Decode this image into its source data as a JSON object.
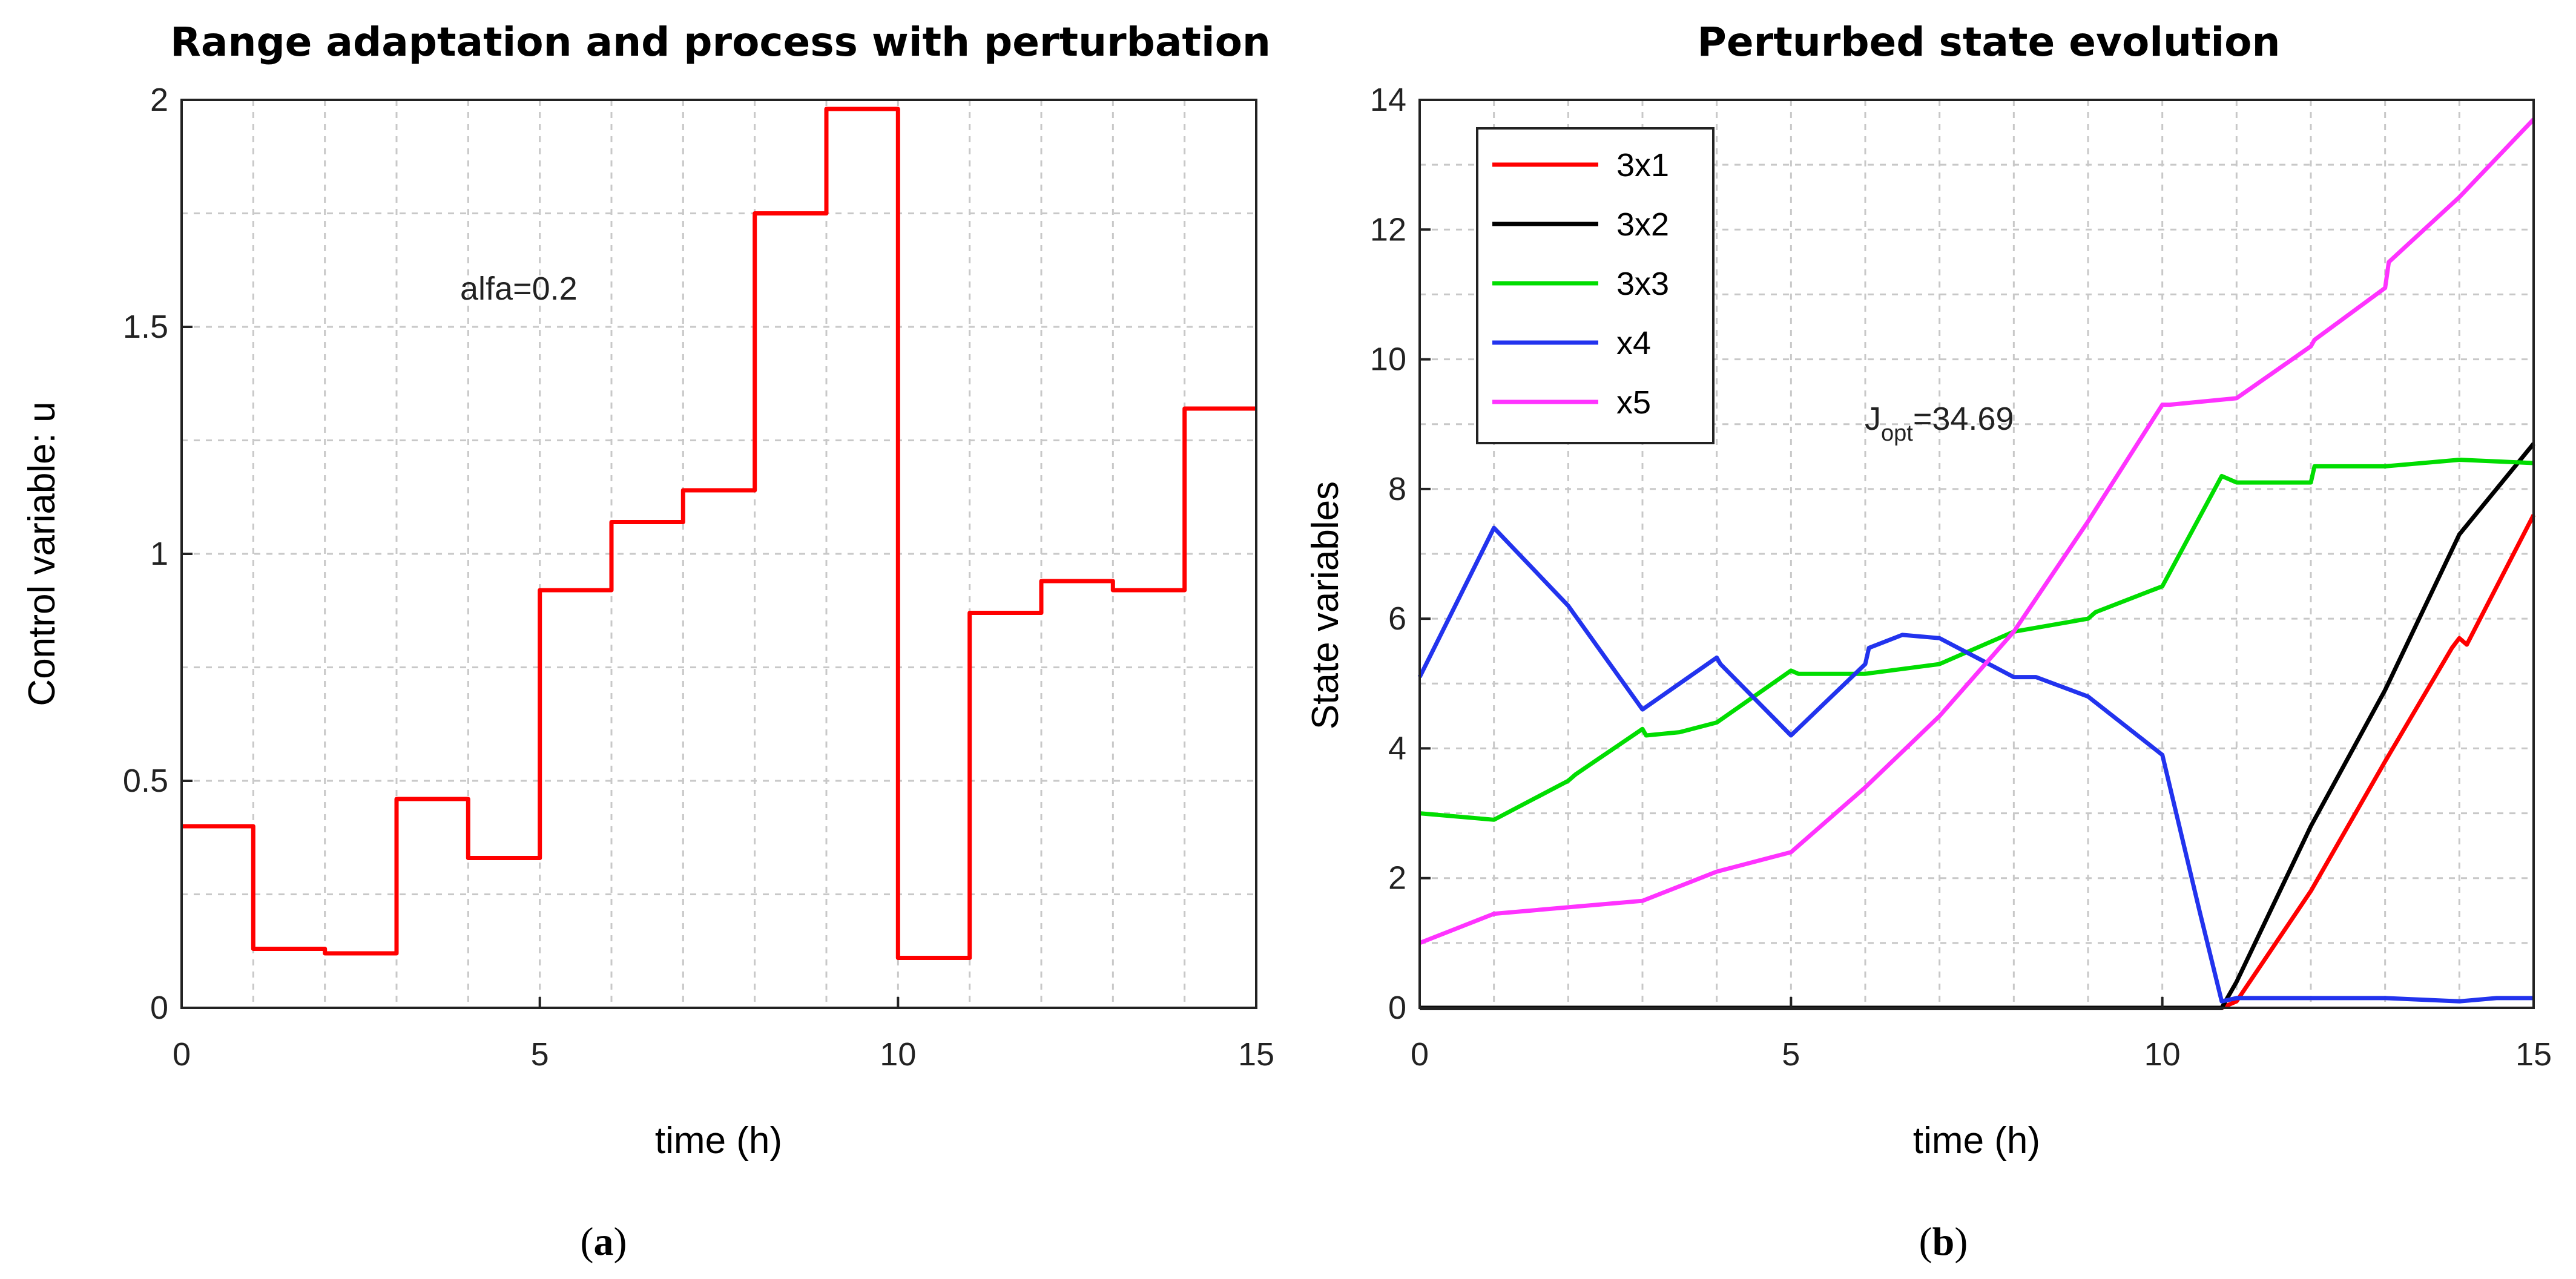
{
  "chart_data": [
    {
      "type": "line",
      "id": "a",
      "title": "Range adaptation and process with perturbation",
      "xlabel": "time (h)",
      "ylabel": "Control variable: u",
      "xlim": [
        0,
        15
      ],
      "ylim": [
        0,
        2
      ],
      "xticks": [
        0,
        5,
        10,
        15
      ],
      "xtick_labels": [
        "0",
        "5",
        "10",
        "15"
      ],
      "yticks": [
        0,
        0.5,
        1,
        1.5,
        2
      ],
      "ytick_labels": [
        "0",
        "0.5",
        "1",
        "1.5",
        "2"
      ],
      "grid": true,
      "annotation": "alfa=0.2",
      "panel_label": "a",
      "series": [
        {
          "name": "u",
          "color": "#ff0000",
          "step": true,
          "x": [
            0,
            1,
            2,
            3,
            4,
            5,
            6,
            7,
            8,
            9,
            10,
            11,
            12,
            13,
            14
          ],
          "values": [
            0.4,
            0.13,
            0.12,
            0.46,
            0.33,
            0.92,
            1.07,
            1.14,
            1.75,
            1.98,
            0.11,
            0.87,
            0.94,
            0.92,
            1.32
          ]
        }
      ]
    },
    {
      "type": "line",
      "id": "b",
      "title": "Perturbed state evolution",
      "xlabel": "time (h)",
      "ylabel": "State variables",
      "xlim": [
        0,
        15
      ],
      "ylim": [
        0,
        14
      ],
      "xticks": [
        0,
        5,
        10,
        15
      ],
      "xtick_labels": [
        "0",
        "5",
        "10",
        "15"
      ],
      "yticks": [
        0,
        2,
        4,
        6,
        8,
        10,
        12,
        14
      ],
      "ytick_labels": [
        "0",
        "2",
        "4",
        "6",
        "8",
        "10",
        "12",
        "14"
      ],
      "grid": true,
      "annotation": {
        "main": "J",
        "subscript": "opt",
        "rest": "=34.69"
      },
      "panel_label": "b",
      "legend_position": "top-left",
      "series": [
        {
          "name": "3x1",
          "color": "#ff0000",
          "x": [
            0,
            10.8,
            11,
            12,
            13,
            13.9,
            14,
            14.1,
            15
          ],
          "values": [
            0,
            0,
            0.1,
            1.8,
            3.8,
            5.55,
            5.7,
            5.6,
            7.6
          ]
        },
        {
          "name": "3x2",
          "color": "#000000",
          "x": [
            0,
            10.8,
            11,
            12,
            13,
            14,
            15
          ],
          "values": [
            0,
            0,
            0.4,
            2.8,
            4.9,
            7.3,
            8.7
          ]
        },
        {
          "name": "3x3",
          "color": "#00dd00",
          "x": [
            0,
            1,
            2,
            2.1,
            3,
            3.05,
            3.5,
            4,
            5,
            5.1,
            6,
            7,
            8,
            9,
            9.1,
            10,
            10.8,
            11,
            12,
            12.05,
            13,
            14,
            15
          ],
          "values": [
            3.0,
            2.9,
            3.5,
            3.6,
            4.3,
            4.2,
            4.25,
            4.4,
            5.2,
            5.15,
            5.15,
            5.3,
            5.8,
            6.0,
            6.1,
            6.5,
            8.2,
            8.1,
            8.1,
            8.35,
            8.35,
            8.45,
            8.4
          ]
        },
        {
          "name": "x4",
          "color": "#2233ee",
          "x": [
            0,
            1,
            2,
            3,
            4,
            4.05,
            5,
            6,
            6.05,
            6.5,
            7,
            7.5,
            8,
            8.3,
            9,
            10,
            10.5,
            10.8,
            11,
            12,
            13,
            14,
            14.5,
            15
          ],
          "values": [
            5.1,
            7.4,
            6.2,
            4.6,
            5.4,
            5.3,
            4.2,
            5.3,
            5.55,
            5.75,
            5.7,
            5.4,
            5.1,
            5.1,
            4.8,
            3.9,
            1.5,
            0.1,
            0.15,
            0.15,
            0.15,
            0.1,
            0.15,
            0.15
          ]
        },
        {
          "name": "x5",
          "color": "#ff33ff",
          "x": [
            0,
            1,
            2,
            3,
            4,
            5,
            6,
            7,
            8,
            9,
            10,
            10.1,
            11,
            12,
            12.05,
            13,
            13.05,
            14,
            15
          ],
          "values": [
            1.0,
            1.45,
            1.55,
            1.65,
            2.1,
            2.4,
            3.4,
            4.5,
            5.8,
            7.5,
            9.3,
            9.3,
            9.4,
            10.2,
            10.3,
            11.1,
            11.5,
            12.5,
            13.7
          ]
        }
      ]
    }
  ]
}
